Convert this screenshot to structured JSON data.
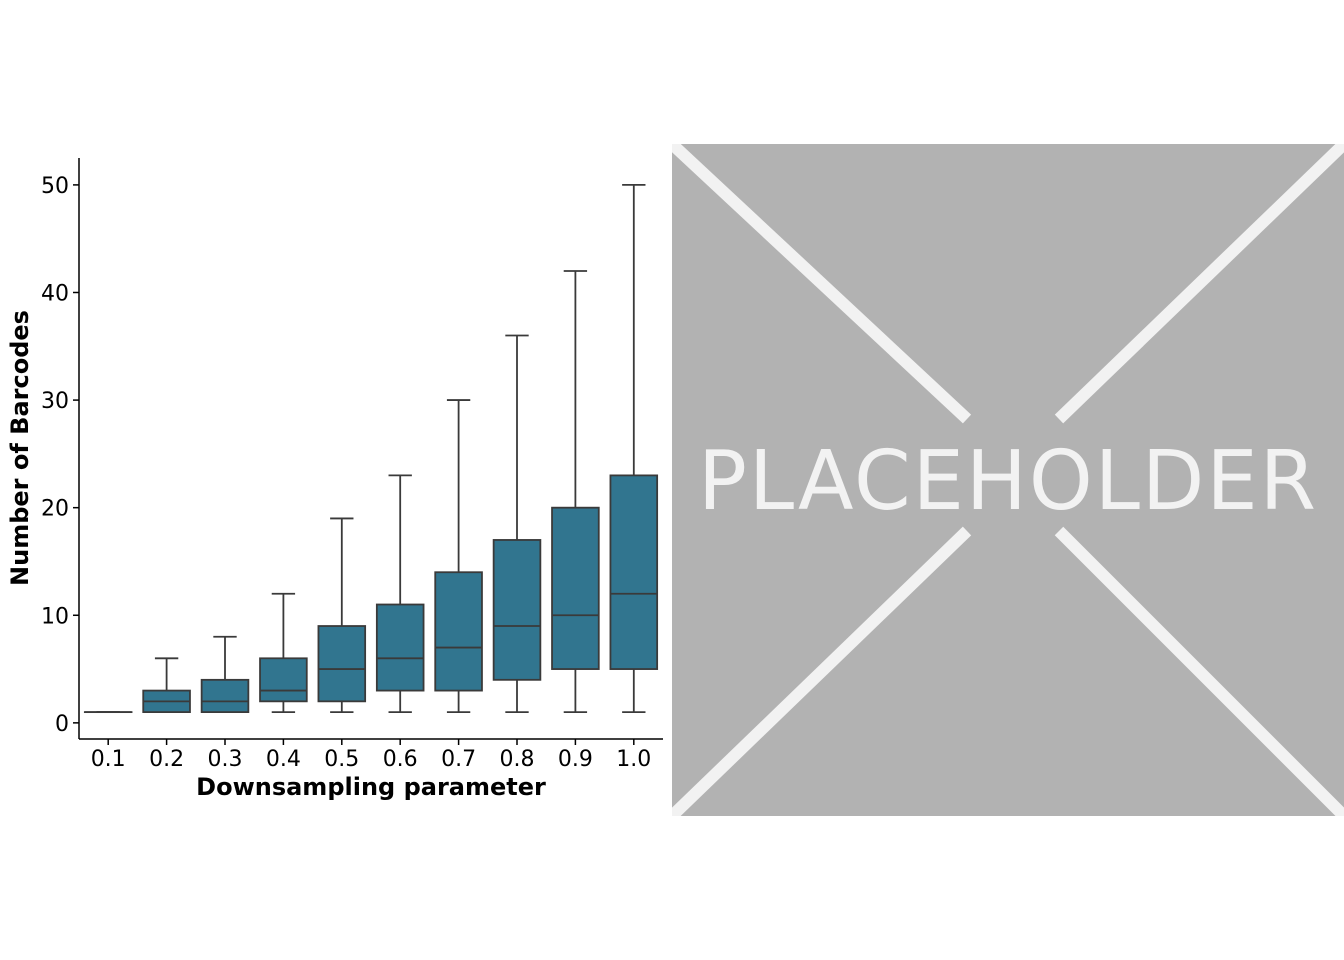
{
  "chart_data": {
    "type": "box",
    "categories": [
      "0.1",
      "0.2",
      "0.3",
      "0.4",
      "0.5",
      "0.6",
      "0.7",
      "0.8",
      "0.9",
      "1.0"
    ],
    "boxes": [
      {
        "x": "0.1",
        "whisker_low": 1,
        "q1": 1,
        "median": 1,
        "q3": 1,
        "whisker_high": 1
      },
      {
        "x": "0.2",
        "whisker_low": 1,
        "q1": 1,
        "median": 2,
        "q3": 3,
        "whisker_high": 6
      },
      {
        "x": "0.3",
        "whisker_low": 1,
        "q1": 1,
        "median": 2,
        "q3": 4,
        "whisker_high": 8
      },
      {
        "x": "0.4",
        "whisker_low": 1,
        "q1": 2,
        "median": 3,
        "q3": 6,
        "whisker_high": 12
      },
      {
        "x": "0.5",
        "whisker_low": 1,
        "q1": 2,
        "median": 5,
        "q3": 9,
        "whisker_high": 19
      },
      {
        "x": "0.6",
        "whisker_low": 1,
        "q1": 3,
        "median": 6,
        "q3": 11,
        "whisker_high": 23
      },
      {
        "x": "0.7",
        "whisker_low": 1,
        "q1": 3,
        "median": 7,
        "q3": 14,
        "whisker_high": 30
      },
      {
        "x": "0.8",
        "whisker_low": 1,
        "q1": 4,
        "median": 9,
        "q3": 17,
        "whisker_high": 36
      },
      {
        "x": "0.9",
        "whisker_low": 1,
        "q1": 5,
        "median": 10,
        "q3": 20,
        "whisker_high": 42
      },
      {
        "x": "1.0",
        "whisker_low": 1,
        "q1": 5,
        "median": 12,
        "q3": 23,
        "whisker_high": 50
      }
    ],
    "xlabel": "Downsampling parameter",
    "ylabel": "Number of Barcodes",
    "yticks": [
      0,
      10,
      20,
      30,
      40,
      50
    ],
    "ylim": [
      -1.5,
      52.5
    ],
    "grid": false,
    "colors": {
      "box_fill": "#31758f",
      "box_line": "#3a3a3a"
    }
  },
  "placeholder": {
    "text": "PLACEHOLDER",
    "background": "#b2b2b2",
    "foreground": "#f2f2f2"
  }
}
